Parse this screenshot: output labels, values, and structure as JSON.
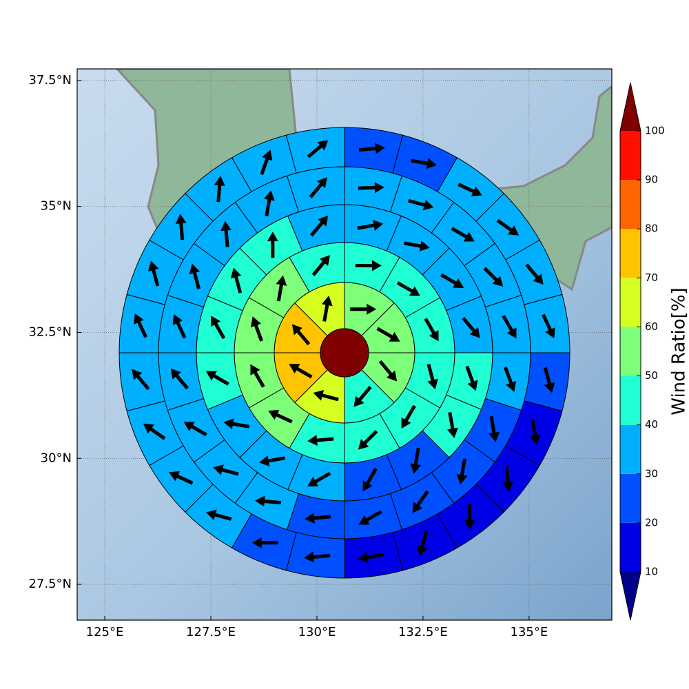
{
  "chart_data": {
    "type": "polar_grid_map",
    "xlim": [
      124.35,
      136.95
    ],
    "ylim": [
      26.79,
      37.73
    ],
    "xticks": [
      {
        "value": 125,
        "label": "125°E"
      },
      {
        "value": 127.5,
        "label": "127.5°E"
      },
      {
        "value": 130,
        "label": "130°E"
      },
      {
        "value": 132.5,
        "label": "132.5°E"
      },
      {
        "value": 135,
        "label": "135°E"
      }
    ],
    "yticks": [
      {
        "value": 27.5,
        "label": "27.5°N"
      },
      {
        "value": 30,
        "label": "30°N"
      },
      {
        "value": 32.5,
        "label": "32.5°N"
      },
      {
        "value": 35,
        "label": "35°N"
      },
      {
        "value": 37.5,
        "label": "37.5°N"
      }
    ],
    "grid": true,
    "colorbar": {
      "label": "Wind Ratio[%]",
      "ticks": [
        10,
        20,
        30,
        40,
        50,
        60,
        70,
        80,
        90,
        100
      ],
      "colors": [
        "#0000e6",
        "#0050ff",
        "#00b0ff",
        "#20ffd4",
        "#7dff7a",
        "#d4ff20",
        "#ffc400",
        "#ff6400",
        "#ff0f00"
      ],
      "under_color": "#00008b",
      "over_color": "#800000"
    },
    "center": {
      "value": 100
    },
    "rings": [
      {
        "values": [
          55,
          55,
          55,
          45,
          65,
          75,
          75,
          65
        ],
        "directions": [
          90,
          120,
          140,
          220,
          285,
          300,
          320,
          10
        ]
      },
      {
        "values": [
          45,
          45,
          45,
          45,
          45,
          45,
          45,
          55,
          55,
          55,
          55,
          45
        ],
        "directions": [
          90,
          120,
          150,
          165,
          210,
          225,
          265,
          295,
          330,
          340,
          10,
          40
        ]
      },
      {
        "values": [
          35,
          35,
          35,
          35,
          45,
          45,
          25,
          25,
          35,
          35,
          35,
          45,
          45,
          45,
          45,
          35
        ],
        "directions": [
          80,
          100,
          120,
          140,
          160,
          170,
          190,
          210,
          240,
          260,
          280,
          300,
          330,
          345,
          0,
          40
        ]
      },
      {
        "values": [
          35,
          35,
          35,
          35,
          35,
          35,
          25,
          25,
          25,
          25,
          25,
          35,
          35,
          35,
          35,
          35,
          35,
          35,
          35,
          35
        ],
        "directions": [
          88,
          105,
          120,
          135,
          150,
          160,
          170,
          190,
          215,
          240,
          265,
          275,
          285,
          300,
          320,
          335,
          345,
          355,
          10,
          40
        ]
      },
      {
        "values": [
          25,
          25,
          35,
          35,
          35,
          35,
          25,
          15,
          15,
          15,
          15,
          15,
          25,
          25,
          35,
          35,
          35,
          35,
          35,
          35,
          35,
          35,
          35,
          35
        ],
        "directions": [
          85,
          100,
          115,
          125,
          140,
          155,
          165,
          170,
          175,
          180,
          195,
          260,
          265,
          270,
          285,
          295,
          305,
          320,
          335,
          345,
          355,
          5,
          20,
          50
        ]
      }
    ]
  }
}
